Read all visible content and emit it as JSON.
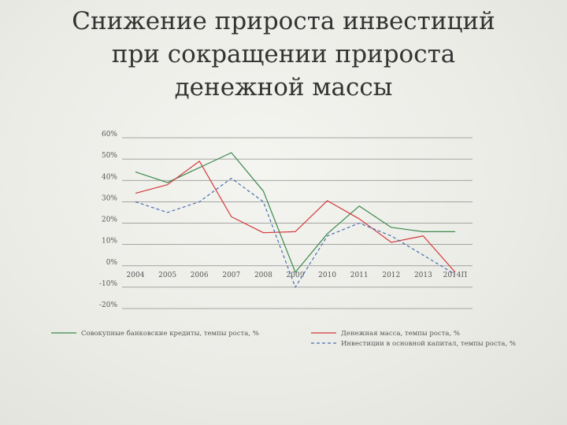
{
  "slide": {
    "title_lines": [
      "Снижение прироста инвестиций",
      "при сокращении прироста",
      "денежной массы"
    ]
  },
  "chart_data": {
    "type": "line",
    "x": [
      "2004",
      "2005",
      "2006",
      "2007",
      "2008",
      "2009",
      "2010",
      "2011",
      "2012",
      "2013",
      "2014П"
    ],
    "y_ticks": [
      "-20%",
      "-10%",
      "0%",
      "10%",
      "20%",
      "30%",
      "40%",
      "50%",
      "60%"
    ],
    "ylim": [
      -20,
      60
    ],
    "grid": true,
    "legend_position": "bottom",
    "series": [
      {
        "name": "Совокупные банковские кредиты, темпы роста, %",
        "color": "#3a8a4f",
        "dash": "solid",
        "values": [
          44,
          39,
          46,
          53,
          35,
          -3,
          15,
          28,
          18,
          16,
          16
        ]
      },
      {
        "name": "Денежная масса, темпы роста, %",
        "color": "#d23a3a",
        "dash": "solid",
        "values": [
          34,
          38,
          49,
          23,
          15.5,
          16,
          30.5,
          22,
          11,
          14,
          -3
        ]
      },
      {
        "name": "Инвестиции в основной капитал, темпы роста, %",
        "color": "#4a6fb0",
        "dash": "dashed",
        "values": [
          30,
          25,
          30,
          41,
          30,
          -10,
          14,
          20,
          14,
          5,
          -4
        ]
      }
    ]
  }
}
